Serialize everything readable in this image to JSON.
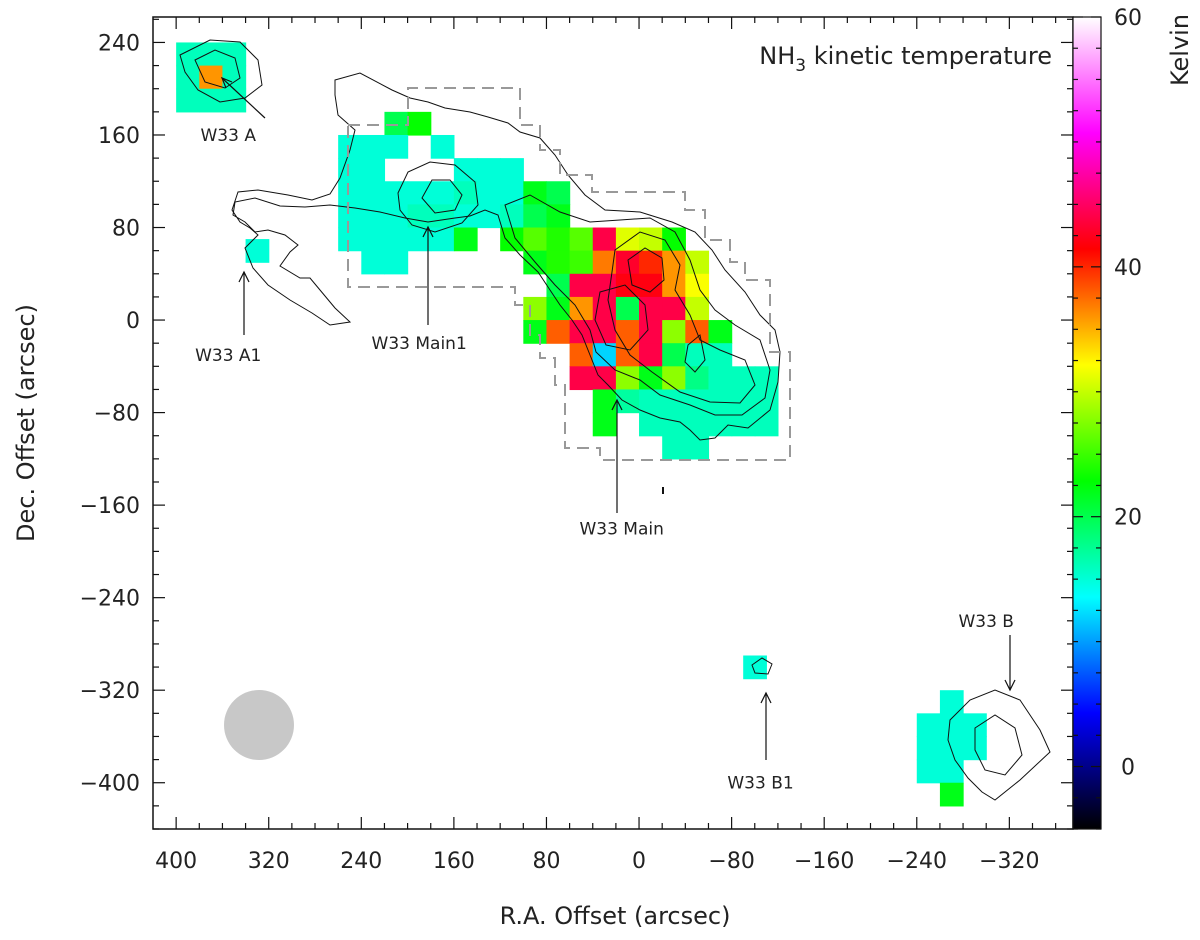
{
  "chart_data": {
    "type": "heatmap",
    "title": "NH3 kinetic temperature",
    "title_main": "NH",
    "title_sub": "3",
    "title_rest": " kinetic temperature",
    "xlabel": "R.A. Offset (arcsec)",
    "ylabel": "Dec. Offset (arcsec)",
    "colorbar_label": "Kelvin",
    "xlim": [
      420,
      -375
    ],
    "ylim": [
      -440,
      262
    ],
    "x_ticks": [
      400,
      320,
      240,
      160,
      80,
      0,
      -80,
      -160,
      -240,
      -320
    ],
    "x_tick_labels": [
      "400",
      "320",
      "240",
      "160",
      "80",
      "0",
      "−80",
      "−160",
      "−240",
      "−320"
    ],
    "y_ticks": [
      240,
      160,
      80,
      0,
      -80,
      -160,
      -240,
      -320,
      -400
    ],
    "y_tick_labels": [
      "240",
      "160",
      "80",
      "0",
      "−80",
      "−160",
      "−240",
      "−320",
      "−400"
    ],
    "colorbar_range": [
      -5,
      60
    ],
    "colorbar_ticks": [
      0,
      20,
      40,
      60
    ],
    "colorbar_tick_labels": [
      "0",
      "20",
      "40",
      "60"
    ],
    "colorscale": [
      "#000000",
      "#0000ff",
      "#00ffff",
      "#00ff00",
      "#ffff00",
      "#ff0000",
      "#ff00ff",
      "#ffffff"
    ],
    "pixel_size_arcsec": 20,
    "pixels": [
      {
        "x": 390,
        "y": 230,
        "t": 16
      },
      {
        "x": 370,
        "y": 230,
        "t": 16
      },
      {
        "x": 350,
        "y": 230,
        "t": 16
      },
      {
        "x": 390,
        "y": 210,
        "t": 16
      },
      {
        "x": 370,
        "y": 210,
        "t": 36
      },
      {
        "x": 350,
        "y": 210,
        "t": 16
      },
      {
        "x": 390,
        "y": 190,
        "t": 16
      },
      {
        "x": 370,
        "y": 190,
        "t": 16
      },
      {
        "x": 350,
        "y": 190,
        "t": 16
      },
      {
        "x": 330,
        "y": 60,
        "t": 15
      },
      {
        "x": 210,
        "y": 170,
        "t": 20
      },
      {
        "x": 190,
        "y": 170,
        "t": 23
      },
      {
        "x": 250,
        "y": 150,
        "t": 15
      },
      {
        "x": 230,
        "y": 150,
        "t": 15
      },
      {
        "x": 210,
        "y": 150,
        "t": 15
      },
      {
        "x": 170,
        "y": 150,
        "t": 15
      },
      {
        "x": 250,
        "y": 130,
        "t": 15
      },
      {
        "x": 230,
        "y": 130,
        "t": 15
      },
      {
        "x": 150,
        "y": 130,
        "t": 15
      },
      {
        "x": 130,
        "y": 130,
        "t": 15
      },
      {
        "x": 110,
        "y": 130,
        "t": 15
      },
      {
        "x": 250,
        "y": 110,
        "t": 15
      },
      {
        "x": 230,
        "y": 110,
        "t": 15
      },
      {
        "x": 210,
        "y": 110,
        "t": 15
      },
      {
        "x": 190,
        "y": 110,
        "t": 15
      },
      {
        "x": 170,
        "y": 110,
        "t": 15
      },
      {
        "x": 150,
        "y": 110,
        "t": 16
      },
      {
        "x": 130,
        "y": 110,
        "t": 15
      },
      {
        "x": 110,
        "y": 110,
        "t": 15
      },
      {
        "x": 90,
        "y": 110,
        "t": 22
      },
      {
        "x": 70,
        "y": 110,
        "t": 20
      },
      {
        "x": 250,
        "y": 90,
        "t": 15
      },
      {
        "x": 230,
        "y": 90,
        "t": 15
      },
      {
        "x": 210,
        "y": 90,
        "t": 15
      },
      {
        "x": 190,
        "y": 90,
        "t": 16
      },
      {
        "x": 170,
        "y": 90,
        "t": 16
      },
      {
        "x": 150,
        "y": 90,
        "t": 15
      },
      {
        "x": 130,
        "y": 90,
        "t": 15
      },
      {
        "x": 110,
        "y": 90,
        "t": 16
      },
      {
        "x": 90,
        "y": 90,
        "t": 20
      },
      {
        "x": 70,
        "y": 90,
        "t": 22
      },
      {
        "x": 250,
        "y": 70,
        "t": 15
      },
      {
        "x": 230,
        "y": 70,
        "t": 15
      },
      {
        "x": 210,
        "y": 70,
        "t": 15
      },
      {
        "x": 190,
        "y": 70,
        "t": 15
      },
      {
        "x": 170,
        "y": 70,
        "t": 15
      },
      {
        "x": 150,
        "y": 70,
        "t": 22
      },
      {
        "x": 110,
        "y": 70,
        "t": 23
      },
      {
        "x": 90,
        "y": 70,
        "t": 26
      },
      {
        "x": 70,
        "y": 70,
        "t": 24
      },
      {
        "x": 50,
        "y": 70,
        "t": 26
      },
      {
        "x": 30,
        "y": 70,
        "t": 44
      },
      {
        "x": 10,
        "y": 70,
        "t": 31
      },
      {
        "x": -10,
        "y": 70,
        "t": 30
      },
      {
        "x": -30,
        "y": 70,
        "t": 23
      },
      {
        "x": 230,
        "y": 50,
        "t": 15
      },
      {
        "x": 210,
        "y": 50,
        "t": 15
      },
      {
        "x": 90,
        "y": 50,
        "t": 22
      },
      {
        "x": 70,
        "y": 50,
        "t": 24
      },
      {
        "x": 50,
        "y": 50,
        "t": 25
      },
      {
        "x": 30,
        "y": 50,
        "t": 37
      },
      {
        "x": 10,
        "y": 50,
        "t": 43
      },
      {
        "x": -10,
        "y": 50,
        "t": 40
      },
      {
        "x": -30,
        "y": 50,
        "t": 36
      },
      {
        "x": -50,
        "y": 50,
        "t": 30
      },
      {
        "x": 70,
        "y": 30,
        "t": 20
      },
      {
        "x": 50,
        "y": 30,
        "t": 44
      },
      {
        "x": 30,
        "y": 30,
        "t": 44
      },
      {
        "x": 10,
        "y": 30,
        "t": 42
      },
      {
        "x": -10,
        "y": 30,
        "t": 42
      },
      {
        "x": -30,
        "y": 30,
        "t": 36
      },
      {
        "x": -50,
        "y": 30,
        "t": 32
      },
      {
        "x": 90,
        "y": 10,
        "t": 28
      },
      {
        "x": 70,
        "y": 10,
        "t": 22
      },
      {
        "x": 50,
        "y": 10,
        "t": 36
      },
      {
        "x": 30,
        "y": 10,
        "t": 44
      },
      {
        "x": 10,
        "y": 10,
        "t": 20
      },
      {
        "x": -10,
        "y": 10,
        "t": 44
      },
      {
        "x": -30,
        "y": 10,
        "t": 44
      },
      {
        "x": -50,
        "y": 10,
        "t": 30
      },
      {
        "x": 90,
        "y": -10,
        "t": 22
      },
      {
        "x": 70,
        "y": -10,
        "t": 38
      },
      {
        "x": 50,
        "y": -10,
        "t": 44
      },
      {
        "x": 30,
        "y": -10,
        "t": 44
      },
      {
        "x": 10,
        "y": -10,
        "t": 38
      },
      {
        "x": -10,
        "y": -10,
        "t": 44
      },
      {
        "x": -30,
        "y": -10,
        "t": 28
      },
      {
        "x": -50,
        "y": -10,
        "t": 38
      },
      {
        "x": -70,
        "y": -10,
        "t": 22
      },
      {
        "x": 50,
        "y": -30,
        "t": 38
      },
      {
        "x": 30,
        "y": -30,
        "t": 12
      },
      {
        "x": 10,
        "y": -30,
        "t": 38
      },
      {
        "x": -10,
        "y": -30,
        "t": 44
      },
      {
        "x": -30,
        "y": -30,
        "t": 20
      },
      {
        "x": -50,
        "y": -30,
        "t": 16
      },
      {
        "x": -70,
        "y": -30,
        "t": 16
      },
      {
        "x": 50,
        "y": -50,
        "t": 44
      },
      {
        "x": 30,
        "y": -50,
        "t": 44
      },
      {
        "x": 10,
        "y": -50,
        "t": 28
      },
      {
        "x": -10,
        "y": -50,
        "t": 22
      },
      {
        "x": -30,
        "y": -50,
        "t": 28
      },
      {
        "x": -50,
        "y": -50,
        "t": 18
      },
      {
        "x": -70,
        "y": -50,
        "t": 16
      },
      {
        "x": -90,
        "y": -50,
        "t": 16
      },
      {
        "x": -110,
        "y": -50,
        "t": 16
      },
      {
        "x": 30,
        "y": -70,
        "t": 22
      },
      {
        "x": 10,
        "y": -70,
        "t": 17
      },
      {
        "x": -10,
        "y": -70,
        "t": 16
      },
      {
        "x": -30,
        "y": -70,
        "t": 16
      },
      {
        "x": -50,
        "y": -70,
        "t": 16
      },
      {
        "x": -70,
        "y": -70,
        "t": 16
      },
      {
        "x": -90,
        "y": -70,
        "t": 16
      },
      {
        "x": -110,
        "y": -70,
        "t": 16
      },
      {
        "x": 30,
        "y": -90,
        "t": 22
      },
      {
        "x": -10,
        "y": -90,
        "t": 16
      },
      {
        "x": -30,
        "y": -90,
        "t": 16
      },
      {
        "x": -50,
        "y": -90,
        "t": 16
      },
      {
        "x": -70,
        "y": -90,
        "t": 16
      },
      {
        "x": -90,
        "y": -90,
        "t": 16
      },
      {
        "x": -110,
        "y": -90,
        "t": 16
      },
      {
        "x": -30,
        "y": -110,
        "t": 16
      },
      {
        "x": -50,
        "y": -110,
        "t": 16
      },
      {
        "x": -100,
        "y": -300,
        "t": 15
      },
      {
        "x": -270,
        "y": -330,
        "t": 15
      },
      {
        "x": -250,
        "y": -350,
        "t": 15
      },
      {
        "x": -270,
        "y": -350,
        "t": 15
      },
      {
        "x": -290,
        "y": -350,
        "t": 15
      },
      {
        "x": -250,
        "y": -370,
        "t": 15
      },
      {
        "x": -270,
        "y": -370,
        "t": 15
      },
      {
        "x": -290,
        "y": -370,
        "t": 15
      },
      {
        "x": -250,
        "y": -390,
        "t": 15
      },
      {
        "x": -270,
        "y": -390,
        "t": 15
      },
      {
        "x": -270,
        "y": -410,
        "t": 22
      }
    ],
    "annotations": [
      {
        "text": "W33 A",
        "x": 355,
        "y": 160
      },
      {
        "text": "W33 A1",
        "x": 355,
        "y": -30
      },
      {
        "text": "W33 Main1",
        "x": 190,
        "y": -20
      },
      {
        "text": "W33 Main",
        "x": 15,
        "y": -180
      },
      {
        "text": "W33 B1",
        "x": -105,
        "y": -400
      },
      {
        "text": "W33 B",
        "x": -300,
        "y": -260
      }
    ]
  }
}
